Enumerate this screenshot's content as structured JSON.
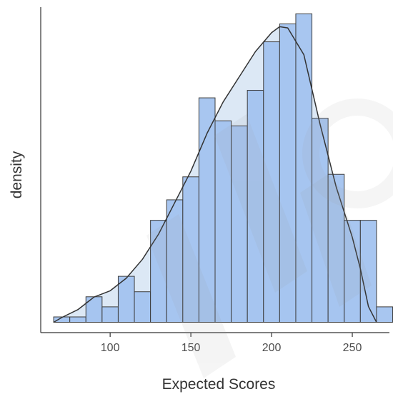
{
  "chart_data": {
    "type": "histogram",
    "title": "",
    "xlabel": "Expected Scores",
    "ylabel": "density",
    "xlim": [
      57,
      273
    ],
    "ylim": [
      0,
      1.0
    ],
    "x_ticks": [
      100,
      150,
      200,
      250
    ],
    "y_ticks": [],
    "grid": false,
    "legend": "none",
    "bin_width": 10,
    "bins": [
      {
        "start": 65,
        "end": 75,
        "value": 0.017
      },
      {
        "start": 75,
        "end": 85,
        "value": 0.017
      },
      {
        "start": 85,
        "end": 95,
        "value": 0.081
      },
      {
        "start": 95,
        "end": 105,
        "value": 0.049
      },
      {
        "start": 105,
        "end": 115,
        "value": 0.146
      },
      {
        "start": 115,
        "end": 125,
        "value": 0.097
      },
      {
        "start": 125,
        "end": 135,
        "value": 0.324
      },
      {
        "start": 135,
        "end": 145,
        "value": 0.389
      },
      {
        "start": 145,
        "end": 155,
        "value": 0.462
      },
      {
        "start": 155,
        "end": 165,
        "value": 0.713
      },
      {
        "start": 165,
        "end": 175,
        "value": 0.64
      },
      {
        "start": 175,
        "end": 185,
        "value": 0.624
      },
      {
        "start": 185,
        "end": 195,
        "value": 0.737
      },
      {
        "start": 195,
        "end": 205,
        "value": 0.891
      },
      {
        "start": 205,
        "end": 215,
        "value": 0.948
      },
      {
        "start": 215,
        "end": 225,
        "value": 0.98
      },
      {
        "start": 225,
        "end": 235,
        "value": 0.648
      },
      {
        "start": 235,
        "end": 245,
        "value": 0.47
      },
      {
        "start": 245,
        "end": 255,
        "value": 0.324
      },
      {
        "start": 255,
        "end": 265,
        "value": 0.324
      },
      {
        "start": 265,
        "end": 275,
        "value": 0.049
      }
    ],
    "density_curve": {
      "x": [
        65,
        70,
        80,
        90,
        100,
        110,
        120,
        130,
        140,
        150,
        160,
        170,
        180,
        190,
        200,
        205,
        210,
        220,
        230,
        240,
        250,
        255,
        260,
        265
      ],
      "y": [
        0.0,
        0.015,
        0.04,
        0.08,
        0.1,
        0.14,
        0.2,
        0.28,
        0.38,
        0.48,
        0.6,
        0.7,
        0.78,
        0.86,
        0.92,
        0.939,
        0.935,
        0.85,
        0.63,
        0.43,
        0.27,
        0.17,
        0.05,
        0.0
      ]
    },
    "colors": {
      "bar_fill": "#a1c1ef",
      "bar_stroke": "#3d3d3d",
      "density_fill": "#dce8f5",
      "density_line": "#333333",
      "axis": "#333333"
    }
  }
}
